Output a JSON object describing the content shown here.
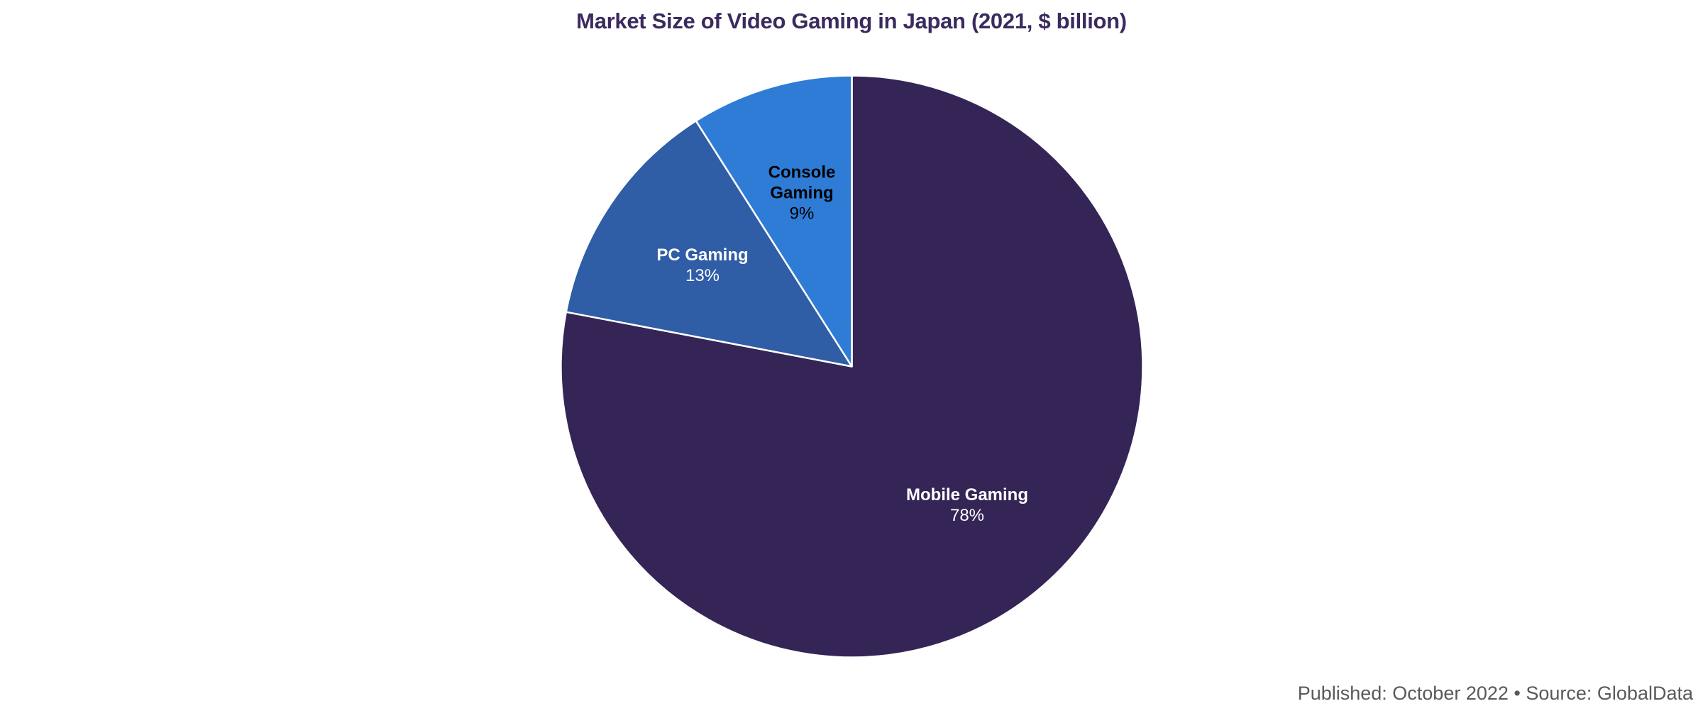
{
  "title": {
    "text": "Market Size of Video Gaming in Japan (2021, $ billion)",
    "color": "#3B2A5E"
  },
  "footer": {
    "text": "Published: October 2022 • Source: GlobalData",
    "color": "#595959"
  },
  "chart_data": {
    "type": "pie",
    "title": "Market Size of Video Gaming in Japan (2021, $ billion)",
    "start_angle": "12 o'clock, clockwise",
    "legend_position": "none (labels inside slices)",
    "separator_color": "#FFFFFF",
    "background_color": "#FFFFFF",
    "slices": [
      {
        "label": "Mobile Gaming",
        "value": 78,
        "pct_label": "78%",
        "color": "#342556",
        "label_color": "#FFFFFF"
      },
      {
        "label": "PC Gaming",
        "value": 13,
        "pct_label": "13%",
        "color": "#2F5DA6",
        "label_color": "#FFFFFF"
      },
      {
        "label": "Console Gaming",
        "value": 9,
        "pct_label": "9%",
        "color": "#2E7CD6",
        "label_color": "#000000"
      }
    ]
  }
}
